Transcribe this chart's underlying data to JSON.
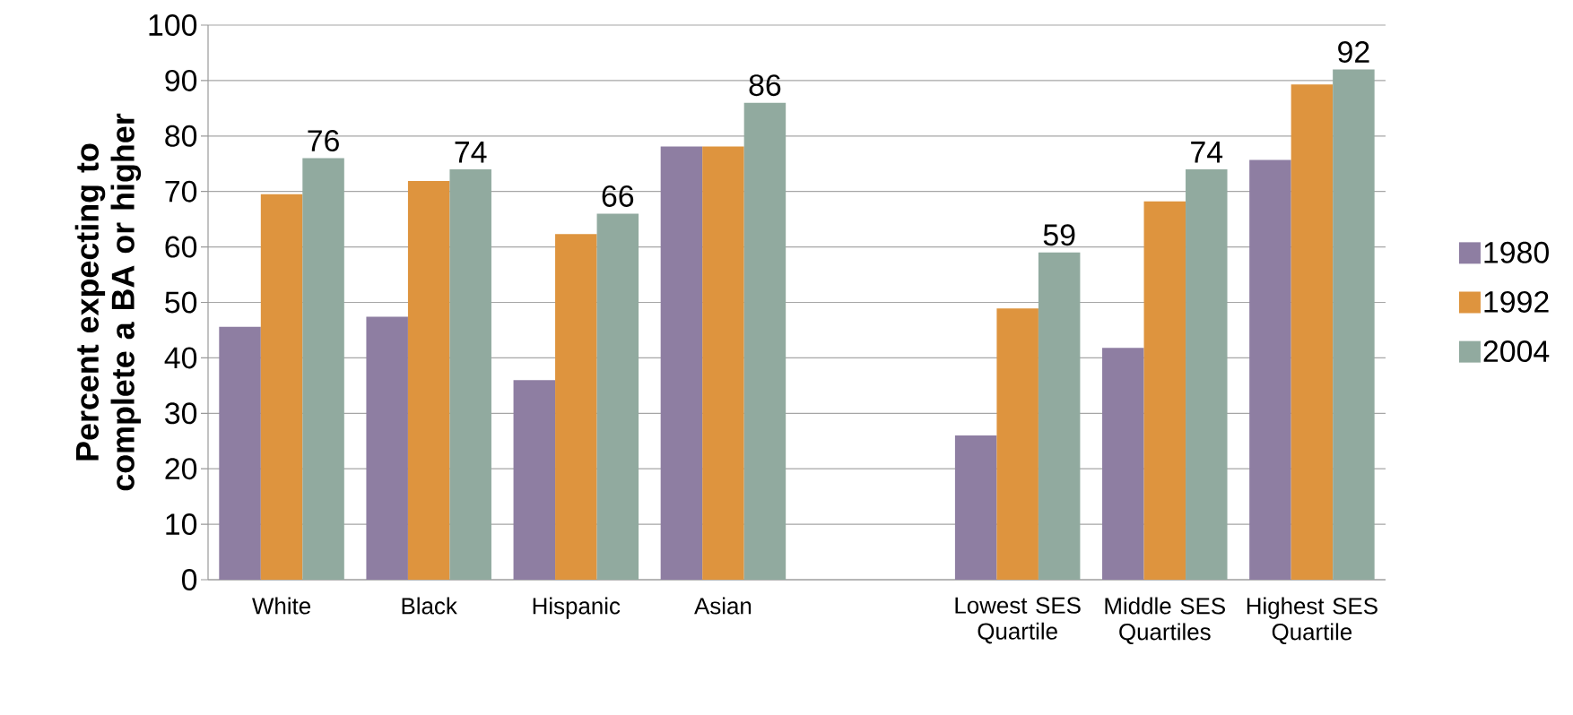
{
  "chart_data": {
    "type": "bar",
    "ylabel": "Percent expecting to complete a BA or higher",
    "categories": [
      "White",
      "Black",
      "Hispanic",
      "Asian",
      null,
      "Lowest SES Quartile",
      "Middle SES Quartiles",
      "Highest SES Quartile"
    ],
    "series": [
      {
        "name": "1980",
        "color": "#8e7ea2",
        "values": [
          45.6,
          47.4,
          36.0,
          78.1,
          null,
          26.0,
          41.8,
          75.7
        ]
      },
      {
        "name": "1992",
        "color": "#de943e",
        "values": [
          69.5,
          71.9,
          62.3,
          78.1,
          null,
          48.9,
          68.2,
          89.3
        ]
      },
      {
        "name": "2004",
        "color": "#91aa9f",
        "values": [
          76,
          74,
          66,
          86,
          null,
          59,
          74,
          92
        ],
        "value_labels": [
          "76",
          "74",
          "66",
          "86",
          null,
          "59",
          "74",
          "92"
        ]
      }
    ],
    "ylim": [
      0,
      100
    ],
    "yticks": [
      0,
      10,
      20,
      30,
      40,
      50,
      60,
      70,
      80,
      90,
      100
    ],
    "grid": "y",
    "legend": "right"
  }
}
